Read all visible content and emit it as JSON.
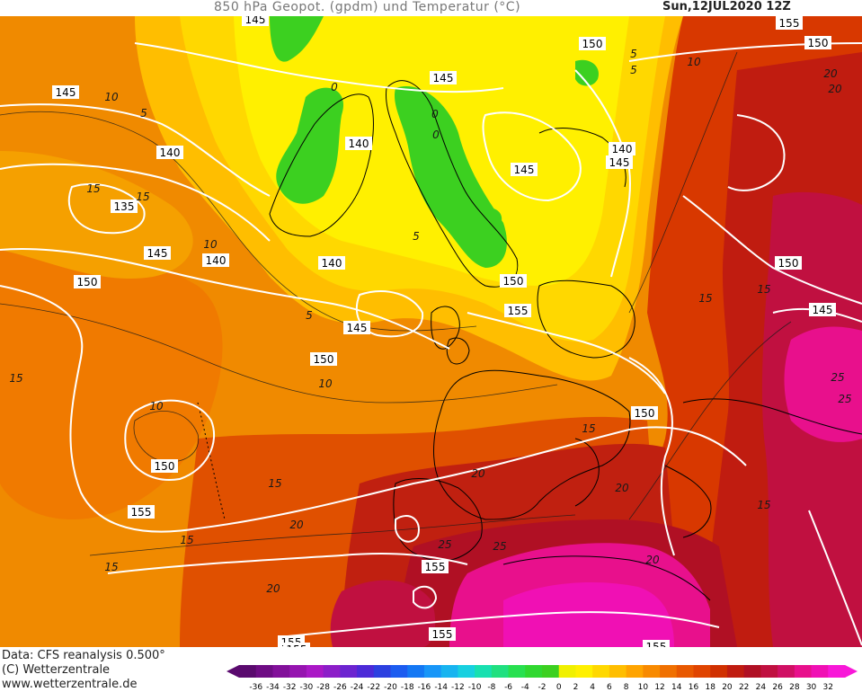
{
  "title": {
    "left": "850 hPa Geopot. (gpdm) und Temperatur (°C)",
    "right": "Sun,12JUL2020 12Z"
  },
  "credits": {
    "data": "Data: CFS reanalysis 0.500°",
    "copyright": "(C) Wetterzentrale",
    "url": "www.wetterzentrale.de"
  },
  "colorbar": {
    "ticks": [
      "-36",
      "-34",
      "-32",
      "-30",
      "-28",
      "-26",
      "-24",
      "-22",
      "-20",
      "-18",
      "-16",
      "-14",
      "-12",
      "-10",
      "-8",
      "-6",
      "-4",
      "-2",
      "0",
      "2",
      "4",
      "6",
      "8",
      "10",
      "12",
      "14",
      "16",
      "18",
      "20",
      "22",
      "24",
      "26",
      "28",
      "30",
      "32"
    ],
    "colors": [
      "#5a0a6e",
      "#6e0c84",
      "#82109a",
      "#9614b0",
      "#aa18c6",
      "#8c1ec8",
      "#6c24d0",
      "#4c2ad8",
      "#2c40e0",
      "#1c5cf0",
      "#1478f4",
      "#1896f8",
      "#18b4f0",
      "#18d0e0",
      "#18e0b0",
      "#20e080",
      "#28e050",
      "#30d830",
      "#3cd020",
      "#f0f000",
      "#fff000",
      "#ffd800",
      "#ffbe00",
      "#ffa400",
      "#f88a00",
      "#f07000",
      "#e85800",
      "#e04400",
      "#d03000",
      "#c01c10",
      "#b01024",
      "#c01040",
      "#d01064",
      "#e8108c",
      "#f010b4",
      "#f818d8"
    ]
  },
  "geopotential_labels": [
    "145",
    "145",
    "140",
    "135",
    "145",
    "140",
    "150",
    "140",
    "140",
    "145",
    "150",
    "145",
    "145",
    "140",
    "145",
    "150",
    "155",
    "150",
    "150",
    "150",
    "155",
    "155",
    "155",
    "155",
    "155",
    "155",
    "155",
    "150",
    "150",
    "145"
  ],
  "temperature_labels": [
    "10",
    "5",
    "0",
    "15",
    "15",
    "10",
    "5",
    "10",
    "10",
    "15",
    "15",
    "5",
    "5",
    "0",
    "0",
    "5",
    "10",
    "20",
    "15",
    "15",
    "15",
    "20",
    "20",
    "25",
    "25",
    "20",
    "15",
    "25",
    "25",
    "20",
    "20",
    "15",
    "15",
    "20"
  ]
}
